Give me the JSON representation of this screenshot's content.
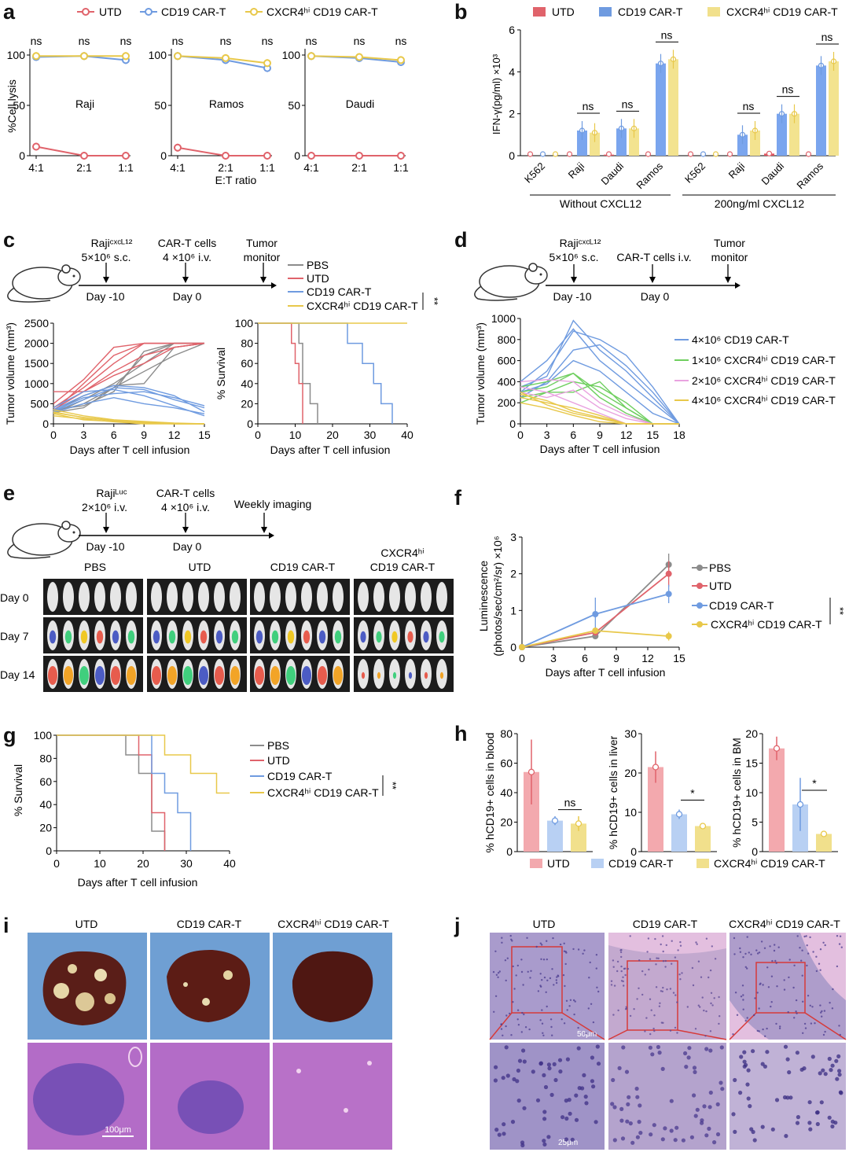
{
  "colors": {
    "utd": "#e0636b",
    "cd19": "#6f9be0",
    "cxcr4": "#e8c84a",
    "pbs": "#8c8c8c",
    "green": "#6fcf5f",
    "pink": "#e9a3e0"
  },
  "panel_labels": {
    "a": "a",
    "b": "b",
    "c": "c",
    "d": "d",
    "e": "e",
    "f": "f",
    "g": "g",
    "h": "h",
    "i": "i",
    "j": "j"
  },
  "legend_a": {
    "utd": "UTD",
    "cd19": "CD19 CAR-T",
    "cxcr4": "CXCR4ʰⁱ CD19 CAR-T"
  },
  "panel_a": {
    "ylabel": "%Cell lysis",
    "xlabel": "E:T ratio",
    "xticks": [
      "4:1",
      "2:1",
      "1:1"
    ],
    "yticks": [
      "0",
      "50",
      "100"
    ],
    "ns": "ns",
    "subplots": [
      {
        "name": "Raji"
      },
      {
        "name": "Ramos"
      },
      {
        "name": "Daudi"
      }
    ]
  },
  "chart_data": [
    {
      "type": "line",
      "panel": "a",
      "title": "Raji",
      "x": [
        "4:1",
        "2:1",
        "1:1"
      ],
      "xlabel": "E:T ratio",
      "ylabel": "%Cell lysis",
      "ylim": [
        0,
        100
      ],
      "series": [
        {
          "name": "UTD",
          "values": [
            9,
            0,
            0
          ]
        },
        {
          "name": "CD19 CAR-T",
          "values": [
            98,
            99,
            95
          ]
        },
        {
          "name": "CXCR4hi CD19 CAR-T",
          "values": [
            99,
            99,
            99
          ]
        }
      ]
    },
    {
      "type": "line",
      "panel": "a",
      "title": "Ramos",
      "x": [
        "4:1",
        "2:1",
        "1:1"
      ],
      "xlabel": "E:T ratio",
      "ylabel": "%Cell lysis",
      "ylim": [
        0,
        100
      ],
      "series": [
        {
          "name": "UTD",
          "values": [
            8,
            0,
            0
          ]
        },
        {
          "name": "CD19 CAR-T",
          "values": [
            99,
            95,
            87
          ]
        },
        {
          "name": "CXCR4hi CD19 CAR-T",
          "values": [
            99,
            97,
            92
          ]
        }
      ]
    },
    {
      "type": "line",
      "panel": "a",
      "title": "Daudi",
      "x": [
        "4:1",
        "2:1",
        "1:1"
      ],
      "xlabel": "E:T ratio",
      "ylabel": "%Cell lysis",
      "ylim": [
        0,
        100
      ],
      "series": [
        {
          "name": "UTD",
          "values": [
            0,
            0,
            0
          ]
        },
        {
          "name": "CD19 CAR-T",
          "values": [
            99,
            97,
            93
          ]
        },
        {
          "name": "CXCR4hi CD19 CAR-T",
          "values": [
            99,
            98,
            95
          ]
        }
      ]
    },
    {
      "type": "bar",
      "panel": "b",
      "ylabel": "IFN-γ(pg/ml) ×10³",
      "ylim": [
        0,
        6
      ],
      "categories": [
        "K562",
        "Raji",
        "Daudi",
        "Ramos",
        "K562",
        "Raji",
        "Daudi",
        "Ramos"
      ],
      "groups": [
        "Without CXCL12",
        "200ng/ml CXCL12"
      ],
      "series": [
        {
          "name": "UTD",
          "values": [
            0,
            0,
            0.05,
            0,
            0,
            0,
            0.1,
            0
          ]
        },
        {
          "name": "CD19 CAR-T",
          "values": [
            0,
            1.2,
            1.3,
            4.4,
            0,
            1.0,
            2.0,
            4.3
          ]
        },
        {
          "name": "CXCR4hi CD19 CAR-T",
          "values": [
            0,
            1.1,
            1.3,
            4.6,
            0,
            1.2,
            2.0,
            4.5
          ]
        }
      ]
    },
    {
      "type": "line",
      "panel": "f",
      "xlabel": "Days after T cell infusion",
      "ylabel": "Luminescence (photos/sec/cm²/sr) ×10⁶",
      "ylim": [
        0,
        3
      ],
      "xlim": [
        0,
        15
      ],
      "x": [
        0,
        7,
        14
      ],
      "series": [
        {
          "name": "PBS",
          "values": [
            0,
            0.3,
            2.25
          ]
        },
        {
          "name": "UTD",
          "values": [
            0,
            0.4,
            2.0
          ]
        },
        {
          "name": "CD19 CAR-T",
          "values": [
            0,
            0.9,
            1.45
          ]
        },
        {
          "name": "CXCR4hi CD19 CAR-T",
          "values": [
            0,
            0.45,
            0.3
          ]
        }
      ]
    },
    {
      "type": "bar",
      "panel": "h",
      "title": "blood",
      "ylabel": "% hCD19+ cells in blood",
      "ylim": [
        0,
        80
      ],
      "categories": [
        "UTD",
        "CD19 CAR-T",
        "CXCR4hi CD19 CAR-T"
      ],
      "values": [
        54,
        21,
        19
      ]
    },
    {
      "type": "bar",
      "panel": "h",
      "title": "liver",
      "ylabel": "% hCD19+ cells in liver",
      "ylim": [
        0,
        30
      ],
      "categories": [
        "UTD",
        "CD19 CAR-T",
        "CXCR4hi CD19 CAR-T"
      ],
      "values": [
        21.5,
        9.5,
        6.5
      ]
    },
    {
      "type": "bar",
      "panel": "h",
      "title": "BM",
      "ylabel": "% hCD19+ cells in BM",
      "ylim": [
        0,
        20
      ],
      "categories": [
        "UTD",
        "CD19 CAR-T",
        "CXCR4hi CD19 CAR-T"
      ],
      "values": [
        17.5,
        8,
        3
      ]
    }
  ],
  "legend_b": {
    "utd": "UTD",
    "cd19": "CD19 CAR-T",
    "cxcr4": "CXCR4ʰⁱ CD19 CAR-T"
  },
  "panel_b": {
    "ylabel": "IFN-γ(pg/ml) ×10³",
    "yticks": [
      "0",
      "2",
      "4",
      "6"
    ],
    "group1": "Without CXCL12",
    "group2": "200ng/ml CXCL12",
    "ns": "ns",
    "cats": [
      "K562",
      "Raji",
      "Daudi",
      "Ramos",
      "K562",
      "Raji",
      "Daudi",
      "Ramos"
    ]
  },
  "panel_c": {
    "timeline": {
      "event1_line1": "Rajiᶜˣᶜᴸ¹²",
      "event1_line2": "5×10⁶ s.c.",
      "event2_line1": "CAR-T cells",
      "event2_line2": "4 ×10⁶ i.v.",
      "event3_line1": "Tumor",
      "event3_line2": "monitor",
      "day1": "Day -10",
      "day2": "Day 0"
    },
    "legend": [
      "PBS",
      "UTD",
      "CD19 CAR-T",
      "CXCR4ʰⁱ CD19 CAR-T"
    ],
    "sig": "**",
    "vol_ylabel": "Tumor volume (mm³)",
    "vol_xlabel": "Days after T cell infusion",
    "vol_yticks": [
      "0",
      "500",
      "1000",
      "1500",
      "2000",
      "2500"
    ],
    "vol_xticks": [
      "0",
      "3",
      "6",
      "9",
      "12",
      "15"
    ],
    "surv_ylabel": "% Survival",
    "surv_xlabel": "Days after T cell infusion",
    "surv_yticks": [
      "0",
      "20",
      "40",
      "60",
      "80",
      "100"
    ],
    "surv_xticks": [
      "0",
      "10",
      "20",
      "30",
      "40"
    ]
  },
  "panel_d": {
    "timeline": {
      "event1_line1": "Rajiᶜˣᶜᴸ¹²",
      "event1_line2": "5×10⁶ s.c.",
      "event2_line1": "CAR-T cells i.v.",
      "event3_line1": "Tumor",
      "event3_line2": "monitor",
      "day1": "Day -10",
      "day2": "Day 0"
    },
    "legend": [
      "4×10⁶ CD19 CAR-T",
      "1×10⁶ CXCR4ʰⁱ CD19 CAR-T",
      "2×10⁶ CXCR4ʰⁱ CD19 CAR-T",
      "4×10⁶ CXCR4ʰⁱ CD19 CAR-T"
    ],
    "ylabel": "Tumor volume (mm³)",
    "xlabel": "Days after T cell infusion",
    "yticks": [
      "0",
      "200",
      "400",
      "600",
      "800",
      "1000"
    ],
    "xticks": [
      "0",
      "3",
      "6",
      "9",
      "12",
      "15",
      "18"
    ]
  },
  "panel_e": {
    "timeline": {
      "event1_line1": "Rajiᴸᵘᶜ",
      "event1_line2": "2×10⁶ i.v.",
      "event2_line1": "CAR-T cells",
      "event2_line2": "4 ×10⁶ i.v.",
      "event3_line1": "Weekly imaging",
      "day1": "Day -10",
      "day2": "Day 0"
    },
    "groups": [
      "PBS",
      "UTD",
      "CD19 CAR-T",
      "CXCR4ʰⁱ"
    ],
    "group4_line2": "CD19 CAR-T",
    "rows": [
      "Day 0",
      "Day 7",
      "Day 14"
    ]
  },
  "panel_f": {
    "ylabel1": "Luminescence",
    "ylabel2": "(photos/sec/cm²/sr) ×10⁶",
    "xlabel": "Days after T cell infusion",
    "yticks": [
      "0",
      "1",
      "2",
      "3"
    ],
    "xticks": [
      "0",
      "3",
      "6",
      "9",
      "12",
      "15"
    ],
    "legend": [
      "PBS",
      "UTD",
      "CD19 CAR-T",
      "CXCR4ʰⁱ CD19 CAR-T"
    ],
    "sig": "**"
  },
  "panel_g": {
    "ylabel": "% Survival",
    "xlabel": "Days after T cell infusion",
    "yticks": [
      "0",
      "20",
      "40",
      "60",
      "80",
      "100"
    ],
    "xticks": [
      "0",
      "10",
      "20",
      "30",
      "40"
    ],
    "legend": [
      "PBS",
      "UTD",
      "CD19 CAR-T",
      "CXCR4ʰⁱ CD19 CAR-T"
    ],
    "sig": "**"
  },
  "panel_h": {
    "ylabels": [
      "% hCD19+ cells in blood",
      "% hCD19+ cells in liver",
      "% hCD19+ cells in BM"
    ],
    "yticks1": [
      "0",
      "20",
      "40",
      "60",
      "80"
    ],
    "yticks2": [
      "0",
      "10",
      "20",
      "30"
    ],
    "yticks3": [
      "0",
      "5",
      "10",
      "15",
      "20"
    ],
    "ns": "ns",
    "star": "*",
    "legend": [
      "UTD",
      "CD19 CAR-T",
      "CXCR4ʰⁱ CD19 CAR-T"
    ]
  },
  "panel_i": {
    "cols": [
      "UTD",
      "CD19 CAR-T",
      "CXCR4ʰⁱ CD19 CAR-T"
    ],
    "scale": "100μm"
  },
  "panel_j": {
    "cols": [
      "UTD",
      "CD19 CAR-T",
      "CXCR4ʰⁱ CD19 CAR-T"
    ],
    "scale1": "50μm",
    "scale2": "25μm"
  }
}
